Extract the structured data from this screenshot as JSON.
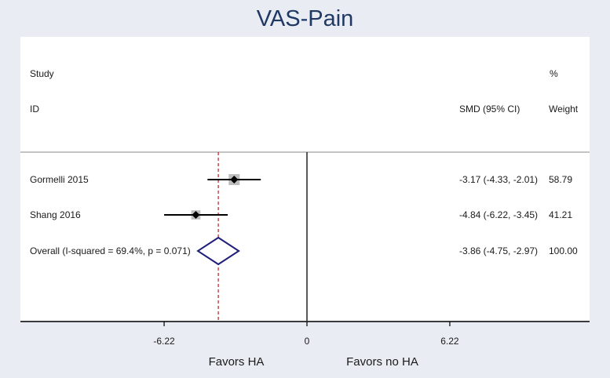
{
  "title": "VAS-Pain",
  "headers": {
    "study_line1": "Study",
    "study_line2": "ID",
    "estimate": "SMD (95% CI)",
    "weight_line1": "%",
    "weight_line2": "Weight"
  },
  "colors": {
    "title": "#1f3864",
    "diamond": "#1f1f7a",
    "ref_line": "#b22222",
    "box": "#bdbdbd"
  },
  "chart_data": {
    "type": "forest",
    "title": "VAS-Pain",
    "studies": [
      {
        "label": "Gormelli 2015",
        "smd": -3.17,
        "ci_low": -4.33,
        "ci_high": -2.01,
        "ci_text": "-3.17 (-4.33, -2.01)",
        "weight": 58.79,
        "weight_text": "58.79"
      },
      {
        "label": "Shang 2016",
        "smd": -4.84,
        "ci_low": -6.22,
        "ci_high": -3.45,
        "ci_text": "-4.84 (-6.22, -3.45)",
        "weight": 41.21,
        "weight_text": "41.21"
      }
    ],
    "overall": {
      "label": "Overall  (I-squared = 69.4%, p = 0.071)",
      "smd": -3.86,
      "ci_low": -4.75,
      "ci_high": -2.97,
      "ci_text": "-3.86 (-4.75, -2.97)",
      "weight": 100.0,
      "weight_text": "100.00"
    },
    "x_ticks": [
      -6.22,
      0,
      6.22
    ],
    "x_tick_labels": [
      "-6.22",
      "0",
      "6.22"
    ],
    "xlim": [
      -12.5,
      11.66
    ],
    "null_value": 0,
    "favors_left": "Favors HA",
    "favors_right": "Favors no HA"
  }
}
